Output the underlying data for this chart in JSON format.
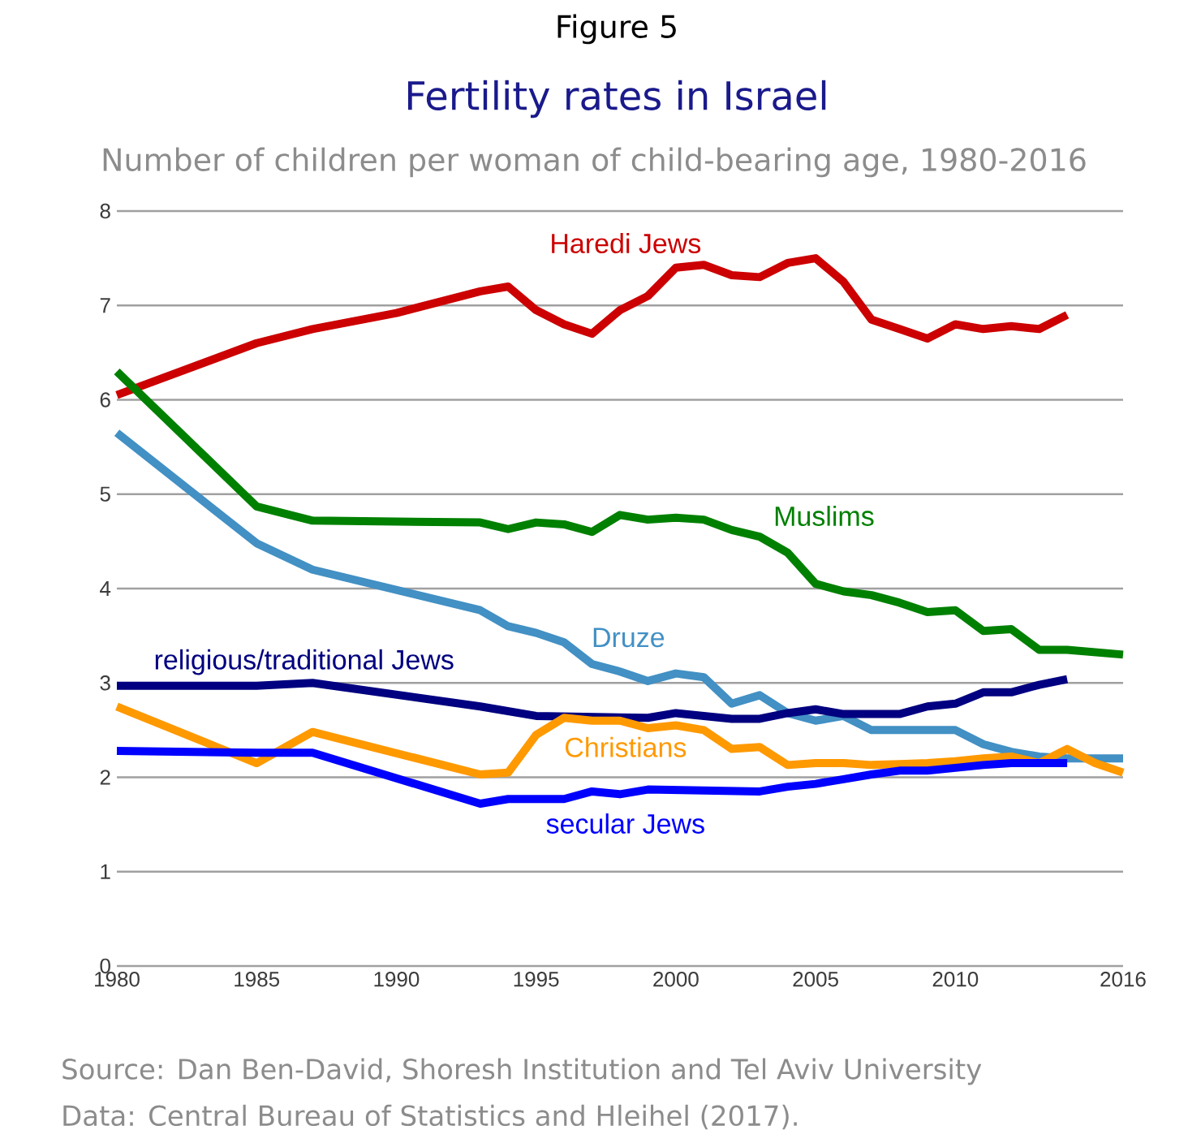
{
  "chart_data": {
    "type": "line",
    "title": "Fertility rates in Israel",
    "subtitle": "Number of children per woman of child-bearing age, 1980-2016",
    "annotations": [
      "Figure 5",
      "Source: Dan Ben-David, Shoresh Institution and Tel Aviv University",
      "Data: Central Bureau of Statistics and Hleihel (2017)."
    ],
    "xlim": [
      1980,
      2016
    ],
    "xticks": [
      1980,
      1985,
      1990,
      1995,
      2000,
      2005,
      2010,
      2016
    ],
    "ylim": [
      0,
      8
    ],
    "yticks": [
      0,
      1,
      2,
      3,
      4,
      5,
      6,
      7,
      8
    ],
    "grid": "y",
    "legend": false,
    "marker": "none",
    "line_style": "solid",
    "series": [
      {
        "name": "Haredi Jews",
        "color": "#cc0000",
        "x": [
          1980,
          1985,
          1987,
          1990,
          1993,
          1994,
          1995,
          1996,
          1997,
          1998,
          1999,
          2000,
          2001,
          2002,
          2003,
          2004,
          2005,
          2006,
          2007,
          2008,
          2009,
          2010,
          2011,
          2012,
          2013,
          2014
        ],
        "values": [
          6.05,
          6.6,
          6.75,
          6.92,
          7.15,
          7.2,
          6.95,
          6.8,
          6.7,
          6.95,
          7.1,
          7.4,
          7.43,
          7.32,
          7.3,
          7.45,
          7.5,
          7.25,
          6.85,
          6.75,
          6.65,
          6.8,
          6.75,
          6.78,
          6.75,
          6.9
        ]
      },
      {
        "name": "Muslims",
        "color": "#008000",
        "x": [
          1980,
          1985,
          1987,
          1993,
          1994,
          1995,
          1996,
          1997,
          1998,
          1999,
          2000,
          2001,
          2002,
          2003,
          2004,
          2005,
          2006,
          2007,
          2008,
          2009,
          2010,
          2011,
          2012,
          2013,
          2014,
          2016
        ],
        "values": [
          6.3,
          4.87,
          4.72,
          4.7,
          4.63,
          4.7,
          4.68,
          4.6,
          4.78,
          4.73,
          4.75,
          4.73,
          4.62,
          4.55,
          4.38,
          4.05,
          3.97,
          3.93,
          3.85,
          3.75,
          3.77,
          3.55,
          3.57,
          3.35,
          3.35,
          3.3
        ]
      },
      {
        "name": "Druze",
        "color": "#4290c4",
        "x": [
          1980,
          1985,
          1987,
          1993,
          1994,
          1995,
          1996,
          1997,
          1998,
          1999,
          2000,
          2001,
          2002,
          2003,
          2004,
          2005,
          2006,
          2007,
          2008,
          2009,
          2010,
          2011,
          2012,
          2013,
          2014,
          2016
        ],
        "values": [
          5.65,
          4.48,
          4.2,
          3.77,
          3.6,
          3.53,
          3.43,
          3.2,
          3.12,
          3.02,
          3.1,
          3.06,
          2.78,
          2.87,
          2.68,
          2.6,
          2.65,
          2.5,
          2.5,
          2.5,
          2.5,
          2.35,
          2.27,
          2.22,
          2.2,
          2.2
        ]
      },
      {
        "name": "religious/traditional Jews",
        "color": "#000080",
        "x": [
          1980,
          1985,
          1987,
          1993,
          1995,
          1999,
          2000,
          2001,
          2002,
          2003,
          2004,
          2005,
          2006,
          2007,
          2008,
          2009,
          2010,
          2011,
          2012,
          2013,
          2014
        ],
        "values": [
          2.97,
          2.97,
          3.0,
          2.75,
          2.65,
          2.63,
          2.68,
          2.65,
          2.62,
          2.62,
          2.68,
          2.72,
          2.67,
          2.67,
          2.67,
          2.75,
          2.78,
          2.9,
          2.9,
          2.98,
          3.04
        ]
      },
      {
        "name": "Christians",
        "color": "#ff9900",
        "x": [
          1980,
          1985,
          1987,
          1993,
          1994,
          1995,
          1996,
          1997,
          1998,
          1999,
          2000,
          2001,
          2002,
          2003,
          2004,
          2005,
          2006,
          2007,
          2008,
          2009,
          2010,
          2011,
          2012,
          2013,
          2014,
          2015,
          2016
        ],
        "values": [
          2.75,
          2.15,
          2.48,
          2.03,
          2.05,
          2.45,
          2.63,
          2.6,
          2.6,
          2.52,
          2.55,
          2.5,
          2.3,
          2.32,
          2.13,
          2.15,
          2.15,
          2.13,
          2.14,
          2.15,
          2.17,
          2.2,
          2.22,
          2.15,
          2.3,
          2.15,
          2.05
        ]
      },
      {
        "name": "secular Jews",
        "color": "#0000ff",
        "x": [
          1980,
          1985,
          1987,
          1993,
          1994,
          1996,
          1997,
          1998,
          1999,
          2003,
          2004,
          2005,
          2006,
          2007,
          2008,
          2009,
          2010,
          2011,
          2012,
          2013,
          2014
        ],
        "values": [
          2.28,
          2.26,
          2.26,
          1.72,
          1.77,
          1.77,
          1.85,
          1.82,
          1.87,
          1.85,
          1.9,
          1.93,
          1.98,
          2.03,
          2.07,
          2.07,
          2.1,
          2.13,
          2.15,
          2.15,
          2.15
        ]
      }
    ]
  }
}
